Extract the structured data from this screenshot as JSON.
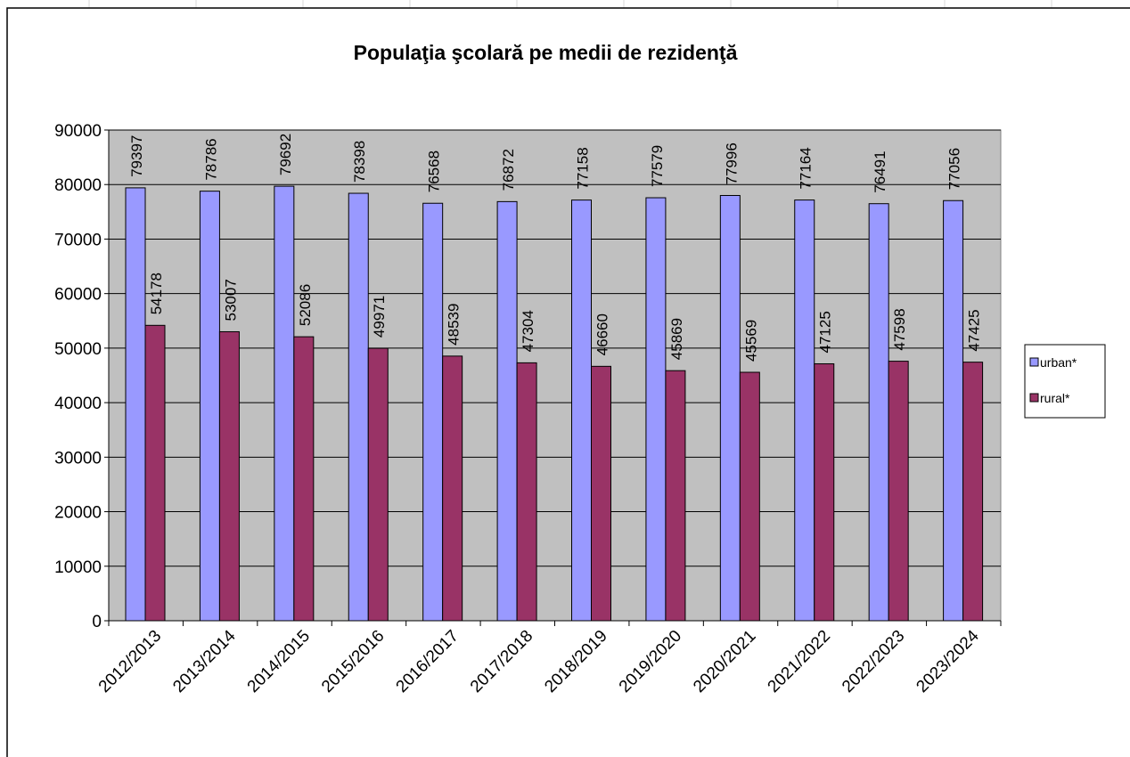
{
  "chart_data": {
    "type": "bar",
    "title": "Populaţia şcolară pe medii de rezidenţă",
    "categories": [
      "2012/2013",
      "2013/2014",
      "2014/2015",
      "2015/2016",
      "2016/2017",
      "2017/2018",
      "2018/2019",
      "2019/2020",
      "2020/2021",
      "2021/2022",
      "2022/2023",
      "2023/2024"
    ],
    "series": [
      {
        "name": "urban*",
        "color": "#9999ff",
        "values": [
          79397,
          78786,
          79692,
          78398,
          76568,
          76872,
          77158,
          77579,
          77996,
          77164,
          76491,
          77056
        ]
      },
      {
        "name": "rural*",
        "color": "#993366",
        "values": [
          54178,
          53007,
          52086,
          49971,
          48539,
          47304,
          46660,
          45869,
          45569,
          47125,
          47598,
          47425
        ]
      }
    ],
    "ylim": [
      0,
      90000
    ],
    "yticks": [
      "0",
      "10000",
      "20000",
      "30000",
      "40000",
      "50000",
      "60000",
      "70000",
      "80000",
      "90000"
    ],
    "plot_background": "#c0c0c0",
    "grid": true,
    "legend_position": "right",
    "data_labels": true
  }
}
